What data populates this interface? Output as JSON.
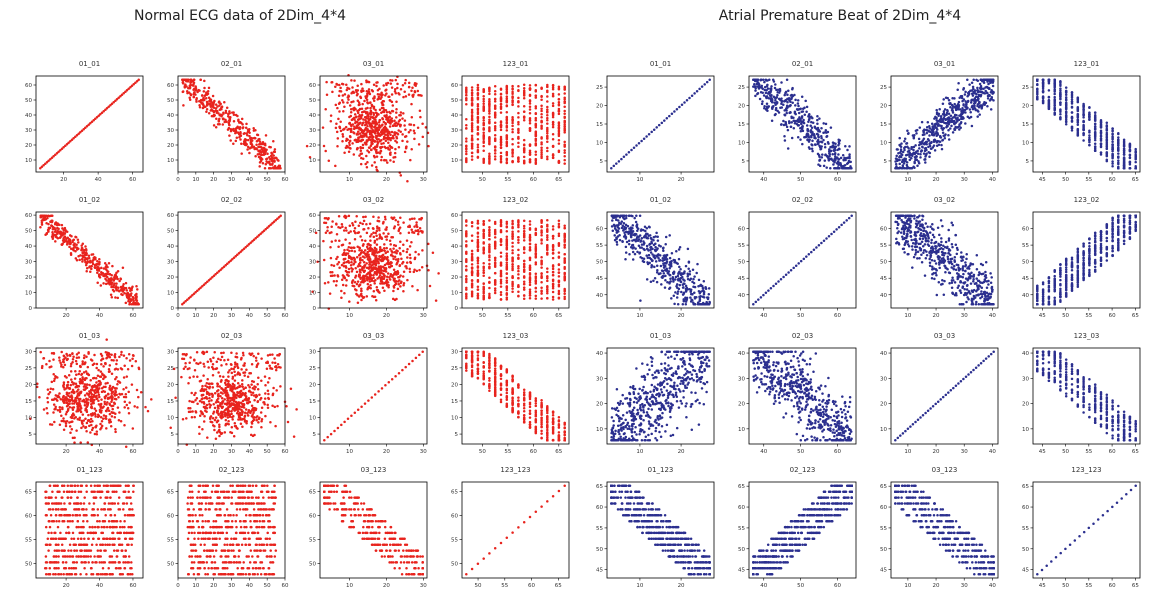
{
  "groups": [
    {
      "title": "Normal ECG data of 2Dim_4*4",
      "color": "#e8231d",
      "panels": [
        {
          "title": "01_01",
          "xlim": [
            4,
            66
          ],
          "ylim": [
            2,
            66
          ],
          "xticks": [
            20,
            40,
            60
          ],
          "yticks": [
            10,
            20,
            30,
            40,
            50,
            60
          ],
          "pattern": "identity",
          "n": 60
        },
        {
          "title": "02_01",
          "xlim": [
            0,
            60
          ],
          "ylim": [
            2,
            66
          ],
          "xticks": [
            0,
            10,
            20,
            30,
            40,
            50,
            60
          ],
          "yticks": [
            10,
            20,
            30,
            40,
            50,
            60
          ],
          "pattern": "neg",
          "n": 420,
          "spread": 4
        },
        {
          "title": "03_01",
          "xlim": [
            2,
            31
          ],
          "ylim": [
            2,
            66
          ],
          "xticks": [
            10,
            20,
            30
          ],
          "yticks": [
            10,
            20,
            30,
            40,
            50,
            60
          ],
          "pattern": "cloud",
          "n": 700
        },
        {
          "title": "123_01",
          "xlim": [
            46,
            67
          ],
          "ylim": [
            2,
            66
          ],
          "xticks": [
            50,
            55,
            60,
            65
          ],
          "yticks": [
            10,
            20,
            30,
            40,
            50,
            60
          ],
          "pattern": "cols",
          "n": 650
        },
        {
          "title": "01_02",
          "xlim": [
            2,
            66
          ],
          "ylim": [
            0,
            62
          ],
          "xticks": [
            20,
            40,
            60
          ],
          "yticks": [
            0,
            10,
            20,
            30,
            40,
            50,
            60
          ],
          "pattern": "neg",
          "n": 420,
          "spread": 3.5
        },
        {
          "title": "02_02",
          "xlim": [
            0,
            60
          ],
          "ylim": [
            0,
            62
          ],
          "xticks": [
            0,
            10,
            20,
            30,
            40,
            50,
            60
          ],
          "yticks": [
            0,
            10,
            20,
            30,
            40,
            50,
            60
          ],
          "pattern": "identity",
          "n": 60
        },
        {
          "title": "03_02",
          "xlim": [
            2,
            31
          ],
          "ylim": [
            0,
            62
          ],
          "xticks": [
            10,
            20,
            30
          ],
          "yticks": [
            0,
            10,
            20,
            30,
            40,
            50,
            60
          ],
          "pattern": "cloud",
          "n": 700
        },
        {
          "title": "123_02",
          "xlim": [
            46,
            67
          ],
          "ylim": [
            0,
            62
          ],
          "xticks": [
            50,
            55,
            60,
            65
          ],
          "yticks": [
            0,
            10,
            20,
            30,
            40,
            50,
            60
          ],
          "pattern": "cols",
          "n": 650
        },
        {
          "title": "01_03",
          "xlim": [
            2,
            66
          ],
          "ylim": [
            2,
            31
          ],
          "xticks": [
            20,
            40,
            60
          ],
          "yticks": [
            5,
            10,
            15,
            20,
            25,
            30
          ],
          "pattern": "cloud",
          "n": 650
        },
        {
          "title": "02_03",
          "xlim": [
            0,
            60
          ],
          "ylim": [
            2,
            31
          ],
          "xticks": [
            0,
            10,
            20,
            30,
            40,
            50,
            60
          ],
          "yticks": [
            5,
            10,
            15,
            20,
            25,
            30
          ],
          "pattern": "cloud",
          "n": 650
        },
        {
          "title": "03_03",
          "xlim": [
            2,
            31
          ],
          "ylim": [
            2,
            31
          ],
          "xticks": [
            10,
            20,
            30
          ],
          "yticks": [
            5,
            10,
            15,
            20,
            25,
            30
          ],
          "pattern": "identity",
          "n": 30
        },
        {
          "title": "123_03",
          "xlim": [
            46,
            67
          ],
          "ylim": [
            2,
            31
          ],
          "xticks": [
            50,
            55,
            60,
            65
          ],
          "yticks": [
            5,
            10,
            15,
            20,
            25,
            30
          ],
          "pattern": "negcols",
          "n": 500
        },
        {
          "title": "01_123",
          "xlim": [
            2,
            66
          ],
          "ylim": [
            47,
            67
          ],
          "xticks": [
            20,
            40,
            60
          ],
          "yticks": [
            50,
            55,
            60,
            65
          ],
          "pattern": "rows",
          "n": 650
        },
        {
          "title": "02_123",
          "xlim": [
            0,
            60
          ],
          "ylim": [
            47,
            67
          ],
          "xticks": [
            0,
            10,
            20,
            30,
            40,
            50,
            60
          ],
          "yticks": [
            50,
            55,
            60,
            65
          ],
          "pattern": "rows",
          "n": 650
        },
        {
          "title": "03_123",
          "xlim": [
            2,
            31
          ],
          "ylim": [
            47,
            67
          ],
          "xticks": [
            10,
            20,
            30
          ],
          "yticks": [
            50,
            55,
            60,
            65
          ],
          "pattern": "negrows",
          "n": 350
        },
        {
          "title": "123_123",
          "xlim": [
            47,
            67
          ],
          "ylim": [
            47,
            67
          ],
          "xticks": [
            50,
            55,
            60,
            65
          ],
          "yticks": [
            50,
            55,
            60,
            65
          ],
          "pattern": "identity",
          "n": 18
        }
      ]
    },
    {
      "title": "Atrial Premature Beat of 2Dim_4*4",
      "color": "#2b2f8f",
      "panels": [
        {
          "title": "01_01",
          "xlim": [
            2,
            28
          ],
          "ylim": [
            2,
            28
          ],
          "xticks": [
            10,
            20
          ],
          "yticks": [
            5,
            10,
            15,
            20,
            25
          ],
          "pattern": "identity",
          "n": 40
        },
        {
          "title": "02_01",
          "xlim": [
            36,
            65
          ],
          "ylim": [
            2,
            28
          ],
          "xticks": [
            40,
            50,
            60
          ],
          "yticks": [
            5,
            10,
            15,
            20,
            25
          ],
          "pattern": "neg",
          "n": 500,
          "spread": 3
        },
        {
          "title": "03_01",
          "xlim": [
            4,
            42
          ],
          "ylim": [
            2,
            28
          ],
          "xticks": [
            10,
            20,
            30,
            40
          ],
          "yticks": [
            5,
            10,
            15,
            20,
            25
          ],
          "pattern": "pos",
          "n": 600,
          "spread": 3.5
        },
        {
          "title": "123_01",
          "xlim": [
            43,
            66
          ],
          "ylim": [
            2,
            28
          ],
          "xticks": [
            45,
            50,
            55,
            60,
            65
          ],
          "yticks": [
            5,
            10,
            15,
            20,
            25
          ],
          "pattern": "negcols",
          "n": 600
        },
        {
          "title": "01_02",
          "xlim": [
            2,
            28
          ],
          "ylim": [
            36,
            65
          ],
          "xticks": [
            10,
            20
          ],
          "yticks": [
            40,
            45,
            50,
            55,
            60
          ],
          "pattern": "neg",
          "n": 500,
          "spread": 3
        },
        {
          "title": "02_02",
          "xlim": [
            36,
            65
          ],
          "ylim": [
            36,
            65
          ],
          "xticks": [
            40,
            50,
            60
          ],
          "yticks": [
            40,
            45,
            50,
            55,
            60
          ],
          "pattern": "identity",
          "n": 40
        },
        {
          "title": "03_02",
          "xlim": [
            4,
            42
          ],
          "ylim": [
            36,
            65
          ],
          "xticks": [
            10,
            20,
            30,
            40
          ],
          "yticks": [
            40,
            45,
            50,
            55,
            60
          ],
          "pattern": "neg",
          "n": 600,
          "spread": 5
        },
        {
          "title": "123_02",
          "xlim": [
            43,
            66
          ],
          "ylim": [
            36,
            65
          ],
          "xticks": [
            45,
            50,
            55,
            60,
            65
          ],
          "yticks": [
            40,
            45,
            50,
            55,
            60
          ],
          "pattern": "poscols",
          "n": 600
        },
        {
          "title": "01_03",
          "xlim": [
            2,
            28
          ],
          "ylim": [
            4,
            42
          ],
          "xticks": [
            10,
            20
          ],
          "yticks": [
            10,
            20,
            30,
            40
          ],
          "pattern": "pos",
          "n": 600,
          "spread": 5
        },
        {
          "title": "02_03",
          "xlim": [
            36,
            65
          ],
          "ylim": [
            4,
            42
          ],
          "xticks": [
            40,
            50,
            60
          ],
          "yticks": [
            10,
            20,
            30,
            40
          ],
          "pattern": "neg",
          "n": 600,
          "spread": 5
        },
        {
          "title": "03_03",
          "xlim": [
            4,
            42
          ],
          "ylim": [
            4,
            42
          ],
          "xticks": [
            10,
            20,
            30,
            40
          ],
          "yticks": [
            10,
            20,
            30,
            40
          ],
          "pattern": "identity",
          "n": 40
        },
        {
          "title": "123_03",
          "xlim": [
            43,
            66
          ],
          "ylim": [
            4,
            42
          ],
          "xticks": [
            45,
            50,
            55,
            60,
            65
          ],
          "yticks": [
            10,
            20,
            30,
            40
          ],
          "pattern": "negcols",
          "n": 420
        },
        {
          "title": "01_123",
          "xlim": [
            2,
            28
          ],
          "ylim": [
            43,
            66
          ],
          "xticks": [
            10,
            20
          ],
          "yticks": [
            45,
            50,
            55,
            60,
            65
          ],
          "pattern": "negrows",
          "n": 600
        },
        {
          "title": "02_123",
          "xlim": [
            36,
            65
          ],
          "ylim": [
            43,
            66
          ],
          "xticks": [
            40,
            50,
            60
          ],
          "yticks": [
            45,
            50,
            55,
            60,
            65
          ],
          "pattern": "posrows",
          "n": 600
        },
        {
          "title": "03_123",
          "xlim": [
            4,
            42
          ],
          "ylim": [
            43,
            66
          ],
          "xticks": [
            10,
            20,
            30,
            40
          ],
          "yticks": [
            45,
            50,
            55,
            60,
            65
          ],
          "pattern": "negrows",
          "n": 420
        },
        {
          "title": "123_123",
          "xlim": [
            43,
            66
          ],
          "ylim": [
            43,
            66
          ],
          "xticks": [
            45,
            50,
            55,
            60,
            65
          ],
          "yticks": [
            45,
            50,
            55,
            60,
            65
          ],
          "pattern": "identity",
          "n": 22
        }
      ]
    }
  ]
}
